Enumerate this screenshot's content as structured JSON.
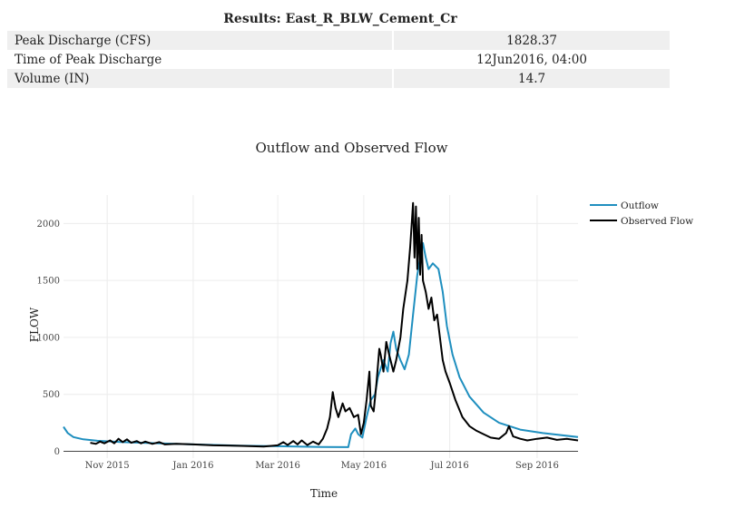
{
  "results": {
    "title": "Results: East_R_BLW_Cement_Cr",
    "rows": [
      {
        "label": "Peak Discharge (CFS)",
        "value": "1828.37"
      },
      {
        "label": "Time of Peak Discharge",
        "value": "12Jun2016, 04:00"
      },
      {
        "label": "Volume (IN)",
        "value": "14.7"
      }
    ]
  },
  "chart_data": {
    "type": "line",
    "title": "Outflow and Observed Flow",
    "xlabel": "Time",
    "ylabel": "FLOW",
    "xlim": [
      "2015-10-01",
      "2016-09-30"
    ],
    "ylim": [
      -60,
      2250
    ],
    "x_ticks": [
      {
        "date": "2015-11-01",
        "label": "Nov 2015"
      },
      {
        "date": "2016-01-01",
        "label": "Jan 2016"
      },
      {
        "date": "2016-03-01",
        "label": "Mar 2016"
      },
      {
        "date": "2016-05-01",
        "label": "May 2016"
      },
      {
        "date": "2016-07-01",
        "label": "Jul 2016"
      },
      {
        "date": "2016-09-01",
        "label": "Sep 2016"
      }
    ],
    "y_ticks": [
      0,
      500,
      1000,
      1500,
      2000
    ],
    "grid": true,
    "legend_position": "top-right",
    "series": [
      {
        "name": "Outflow",
        "color": "#1f8fbf",
        "points": [
          [
            "2015-10-01",
            215
          ],
          [
            "2015-10-04",
            160
          ],
          [
            "2015-10-08",
            125
          ],
          [
            "2015-10-15",
            105
          ],
          [
            "2015-10-25",
            92
          ],
          [
            "2015-11-10",
            82
          ],
          [
            "2015-12-01",
            72
          ],
          [
            "2016-01-01",
            60
          ],
          [
            "2016-02-01",
            50
          ],
          [
            "2016-03-01",
            44
          ],
          [
            "2016-04-01",
            38
          ],
          [
            "2016-04-20",
            36
          ],
          [
            "2016-04-22",
            150
          ],
          [
            "2016-04-25",
            200
          ],
          [
            "2016-04-27",
            150
          ],
          [
            "2016-04-30",
            120
          ],
          [
            "2016-05-03",
            300
          ],
          [
            "2016-05-06",
            450
          ],
          [
            "2016-05-09",
            500
          ],
          [
            "2016-05-11",
            650
          ],
          [
            "2016-05-15",
            800
          ],
          [
            "2016-05-18",
            700
          ],
          [
            "2016-05-20",
            950
          ],
          [
            "2016-05-22",
            1050
          ],
          [
            "2016-05-24",
            900
          ],
          [
            "2016-05-27",
            800
          ],
          [
            "2016-05-30",
            720
          ],
          [
            "2016-06-02",
            850
          ],
          [
            "2016-06-05",
            1200
          ],
          [
            "2016-06-08",
            1550
          ],
          [
            "2016-06-10",
            1700
          ],
          [
            "2016-06-12",
            1828
          ],
          [
            "2016-06-14",
            1700
          ],
          [
            "2016-06-16",
            1600
          ],
          [
            "2016-06-19",
            1650
          ],
          [
            "2016-06-23",
            1600
          ],
          [
            "2016-06-26",
            1400
          ],
          [
            "2016-06-29",
            1100
          ],
          [
            "2016-07-03",
            850
          ],
          [
            "2016-07-08",
            650
          ],
          [
            "2016-07-15",
            480
          ],
          [
            "2016-07-25",
            340
          ],
          [
            "2016-08-05",
            250
          ],
          [
            "2016-08-20",
            190
          ],
          [
            "2016-09-05",
            160
          ],
          [
            "2016-09-30",
            125
          ]
        ]
      },
      {
        "name": "Observed Flow",
        "color": "#000000",
        "points": [
          [
            "2015-10-20",
            75
          ],
          [
            "2015-10-24",
            65
          ],
          [
            "2015-10-27",
            85
          ],
          [
            "2015-10-30",
            70
          ],
          [
            "2015-11-03",
            95
          ],
          [
            "2015-11-06",
            70
          ],
          [
            "2015-11-09",
            110
          ],
          [
            "2015-11-12",
            80
          ],
          [
            "2015-11-15",
            105
          ],
          [
            "2015-11-18",
            75
          ],
          [
            "2015-11-22",
            90
          ],
          [
            "2015-11-25",
            70
          ],
          [
            "2015-11-28",
            85
          ],
          [
            "2015-12-03",
            65
          ],
          [
            "2015-12-08",
            80
          ],
          [
            "2015-12-12",
            60
          ],
          [
            "2015-12-20",
            65
          ],
          [
            "2016-01-01",
            60
          ],
          [
            "2016-01-15",
            52
          ],
          [
            "2016-02-01",
            48
          ],
          [
            "2016-02-20",
            42
          ],
          [
            "2016-03-01",
            52
          ],
          [
            "2016-03-05",
            80
          ],
          [
            "2016-03-08",
            55
          ],
          [
            "2016-03-12",
            90
          ],
          [
            "2016-03-15",
            60
          ],
          [
            "2016-03-18",
            95
          ],
          [
            "2016-03-22",
            55
          ],
          [
            "2016-03-26",
            85
          ],
          [
            "2016-03-30",
            60
          ],
          [
            "2016-04-02",
            110
          ],
          [
            "2016-04-05",
            200
          ],
          [
            "2016-04-07",
            300
          ],
          [
            "2016-04-09",
            520
          ],
          [
            "2016-04-11",
            380
          ],
          [
            "2016-04-13",
            300
          ],
          [
            "2016-04-16",
            420
          ],
          [
            "2016-04-18",
            350
          ],
          [
            "2016-04-21",
            380
          ],
          [
            "2016-04-24",
            300
          ],
          [
            "2016-04-27",
            320
          ],
          [
            "2016-04-29",
            150
          ],
          [
            "2016-05-01",
            250
          ],
          [
            "2016-05-03",
            450
          ],
          [
            "2016-05-05",
            700
          ],
          [
            "2016-05-06",
            400
          ],
          [
            "2016-05-08",
            350
          ],
          [
            "2016-05-10",
            600
          ],
          [
            "2016-05-12",
            900
          ],
          [
            "2016-05-13",
            850
          ],
          [
            "2016-05-15",
            700
          ],
          [
            "2016-05-17",
            960
          ],
          [
            "2016-05-19",
            850
          ],
          [
            "2016-05-22",
            700
          ],
          [
            "2016-05-24",
            800
          ],
          [
            "2016-05-27",
            1000
          ],
          [
            "2016-05-29",
            1250
          ],
          [
            "2016-06-01",
            1500
          ],
          [
            "2016-06-03",
            1800
          ],
          [
            "2016-06-05",
            2180
          ],
          [
            "2016-06-06",
            1700
          ],
          [
            "2016-06-07",
            2150
          ],
          [
            "2016-06-08",
            1600
          ],
          [
            "2016-06-09",
            2050
          ],
          [
            "2016-06-10",
            1550
          ],
          [
            "2016-06-11",
            1900
          ],
          [
            "2016-06-12",
            1500
          ],
          [
            "2016-06-14",
            1400
          ],
          [
            "2016-06-16",
            1250
          ],
          [
            "2016-06-18",
            1350
          ],
          [
            "2016-06-20",
            1150
          ],
          [
            "2016-06-22",
            1200
          ],
          [
            "2016-06-24",
            1000
          ],
          [
            "2016-06-26",
            800
          ],
          [
            "2016-06-28",
            700
          ],
          [
            "2016-07-01",
            600
          ],
          [
            "2016-07-05",
            450
          ],
          [
            "2016-07-10",
            300
          ],
          [
            "2016-07-15",
            220
          ],
          [
            "2016-07-20",
            180
          ],
          [
            "2016-07-25",
            150
          ],
          [
            "2016-07-30",
            120
          ],
          [
            "2016-08-05",
            110
          ],
          [
            "2016-08-10",
            160
          ],
          [
            "2016-08-12",
            220
          ],
          [
            "2016-08-15",
            130
          ],
          [
            "2016-08-20",
            110
          ],
          [
            "2016-08-25",
            95
          ],
          [
            "2016-09-01",
            110
          ],
          [
            "2016-09-08",
            120
          ],
          [
            "2016-09-15",
            100
          ],
          [
            "2016-09-22",
            110
          ],
          [
            "2016-09-30",
            95
          ]
        ]
      }
    ]
  }
}
